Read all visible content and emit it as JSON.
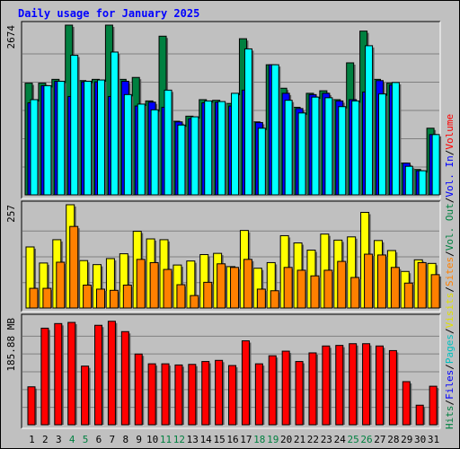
{
  "chart_data": {
    "type": "bar",
    "title": "Daily usage for January 2025",
    "categories": [
      "1",
      "2",
      "3",
      "4",
      "5",
      "6",
      "7",
      "8",
      "9",
      "10",
      "11",
      "12",
      "13",
      "14",
      "15",
      "16",
      "17",
      "18",
      "19",
      "20",
      "21",
      "22",
      "23",
      "24",
      "25",
      "26",
      "27",
      "28",
      "29",
      "30",
      "31"
    ],
    "weekend_days": [
      "4",
      "5",
      "11",
      "12",
      "18",
      "19",
      "25",
      "26"
    ],
    "panels": [
      {
        "name": "hits-files-pages",
        "max_label": "2674",
        "ylim": [
          0,
          2674
        ],
        "series": [
          {
            "name": "Hits",
            "color": "#008040",
            "values": [
              1760,
              1760,
              1820,
              2674,
              1800,
              1820,
              2674,
              1820,
              1850,
              1480,
              2500,
              1160,
              1240,
              1500,
              1490,
              1440,
              2460,
              1150,
              2050,
              1680,
              1380,
              1600,
              1640,
              1500,
              2080,
              2580,
              1820,
              1760,
              500,
              400,
              1050
            ]
          },
          {
            "name": "Files",
            "color": "#0000ff",
            "values": [
              1450,
              1720,
              1790,
              1550,
              1780,
              1780,
              1550,
              1790,
              1400,
              1460,
              1380,
              1150,
              1200,
              1450,
              1460,
              1400,
              1650,
              1140,
              2050,
              1600,
              1360,
              1580,
              1600,
              1480,
              1500,
              1620,
              1800,
              1730,
              500,
              380,
              950
            ]
          },
          {
            "name": "Pages",
            "color": "#00ffff",
            "values": [
              1500,
              1720,
              1790,
              2200,
              1790,
              1810,
              2250,
              1580,
              1430,
              1340,
              1650,
              1100,
              1230,
              1480,
              1470,
              1600,
              2300,
              1050,
              2050,
              1490,
              1290,
              1540,
              1530,
              1390,
              1480,
              2350,
              1590,
              1770,
              450,
              380,
              950
            ]
          }
        ]
      },
      {
        "name": "visits-sites",
        "max_label": "257",
        "ylim": [
          0,
          257
        ],
        "series": [
          {
            "name": "Visits",
            "color": "#ffff00",
            "values": [
              152,
              112,
              170,
              257,
              118,
              108,
              123,
              135,
              191,
              172,
              170,
              107,
              117,
              133,
              136,
              103,
              193,
              99,
              113,
              180,
              162,
              144,
              184,
              169,
              177,
              238,
              168,
              143,
              91,
              120,
              111
            ]
          },
          {
            "name": "Sites",
            "color": "#ff8000",
            "values": [
              49,
              49,
              114,
              203,
              57,
              47,
              44,
              57,
              121,
              113,
              96,
              58,
              31,
              64,
              110,
              101,
              121,
              47,
              43,
              101,
              94,
              80,
              94,
              116,
              76,
              134,
              132,
              101,
              62,
              113,
              83
            ]
          }
        ]
      },
      {
        "name": "volume",
        "max_label": "185.88 MB",
        "ylim": [
          0,
          185.88
        ],
        "series": [
          {
            "name": "Volume",
            "color": "#ff0000",
            "values": [
              66,
              168,
              176,
              178,
              102,
              173,
              180,
              162,
              123,
              106,
              106,
              104,
              105,
              110,
              112,
              103,
              146,
              106,
              120,
              128,
              110,
              125,
              137,
              138,
              141,
              141,
              137,
              129,
              75,
              34,
              67
            ]
          }
        ]
      }
    ],
    "legend_right": [
      {
        "label": "Hits",
        "color": "#008040"
      },
      {
        "label": "/",
        "color": "#000000"
      },
      {
        "label": "Files",
        "color": "#0000ff"
      },
      {
        "label": "/",
        "color": "#000000"
      },
      {
        "label": "Pages",
        "color": "#00c0c0"
      },
      {
        "label": "/",
        "color": "#000000"
      },
      {
        "label": "Visits",
        "color": "#e0e000"
      },
      {
        "label": "/",
        "color": "#000000"
      },
      {
        "label": "Sites",
        "color": "#ff8000"
      },
      {
        "label": "/",
        "color": "#000000"
      },
      {
        "label": "Vol. Out",
        "color": "#008040"
      },
      {
        "label": "/",
        "color": "#000000"
      },
      {
        "label": "Vol. In",
        "color": "#0000ff"
      },
      {
        "label": "/",
        "color": "#000000"
      },
      {
        "label": "Volume",
        "color": "#ff0000"
      }
    ],
    "grid": true
  }
}
